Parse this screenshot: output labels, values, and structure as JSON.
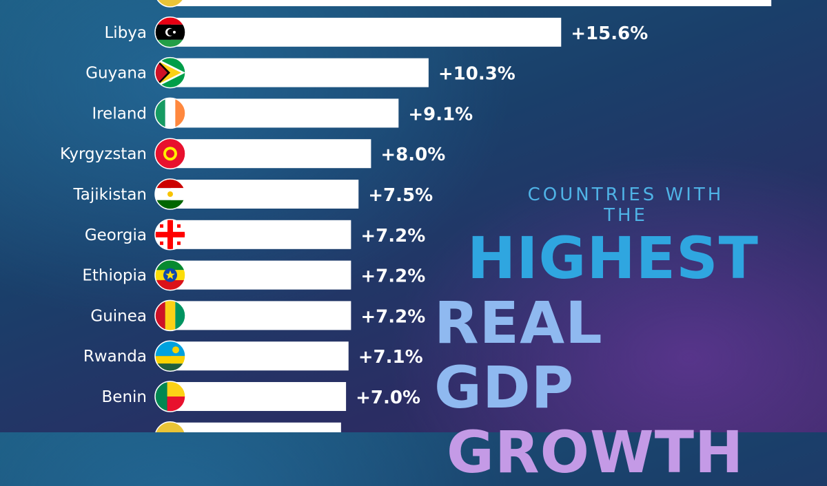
{
  "title": {
    "kicker": "COUNTRIES WITH THE",
    "line1": "HIGHEST",
    "line2": "REAL GDP",
    "line3": "GROWTH"
  },
  "colors": {
    "bar": "#ffffff",
    "text": "#ffffff",
    "accent": "#2fa6e0"
  },
  "chart_data": {
    "type": "bar",
    "orientation": "horizontal",
    "grid": false,
    "categories": [
      "",
      "Libya",
      "Guyana",
      "Ireland",
      "Kyrgyzstan",
      "Tajikistan",
      "Georgia",
      "Ethiopia",
      "Guinea",
      "Rwanda",
      "Benin",
      ""
    ],
    "values": [
      24.0,
      15.6,
      10.3,
      9.1,
      8.0,
      7.5,
      7.2,
      7.2,
      7.2,
      7.1,
      7.0,
      6.8
    ],
    "value_labels": [
      "",
      "+15.6%",
      "+10.3%",
      "+9.1%",
      "+8.0%",
      "+7.5%",
      "+7.2%",
      "+7.2%",
      "+7.2%",
      "+7.1%",
      "+7.0%",
      ""
    ],
    "flag_icons": [
      "flag-icon",
      "libya-flag-icon",
      "guyana-flag-icon",
      "ireland-flag-icon",
      "kyrgyzstan-flag-icon",
      "tajikistan-flag-icon",
      "georgia-flag-icon",
      "ethiopia-flag-icon",
      "guinea-flag-icon",
      "rwanda-flag-icon",
      "benin-flag-icon",
      "flag-icon"
    ]
  }
}
